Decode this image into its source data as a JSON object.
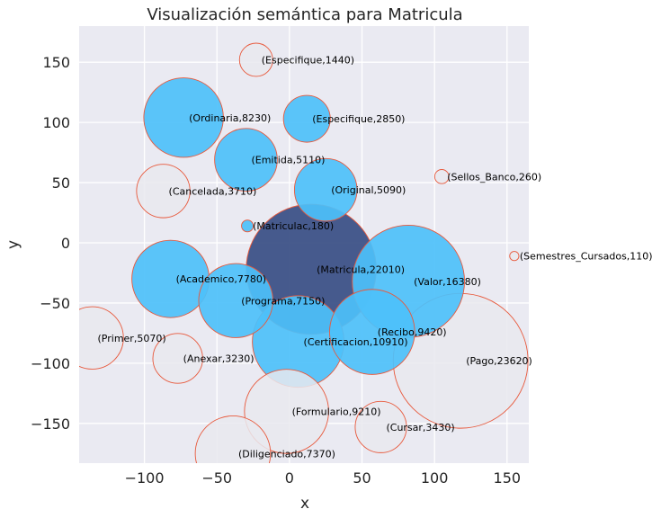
{
  "chart_data": {
    "type": "scatter",
    "title": "Visualización semántica para Matricula",
    "xlabel": "x",
    "ylabel": "y",
    "xlim": [
      -145,
      165
    ],
    "ylim": [
      -183,
      180
    ],
    "xticks": [
      -100,
      -50,
      0,
      50,
      100,
      150
    ],
    "yticks": [
      -150,
      -100,
      -50,
      0,
      50,
      100,
      150
    ],
    "xtick_labels": [
      "−100",
      "−50",
      "0",
      "50",
      "100",
      "150"
    ],
    "ytick_labels": [
      "−150",
      "−100",
      "−50",
      "0",
      "50",
      "100",
      "150"
    ],
    "grid": true,
    "colors": {
      "background": "#eaeaf2",
      "grid": "#ffffff",
      "bubble_blue": "#4dc0fa",
      "bubble_gray": "#e9e9ee",
      "bubble_center": "#3d5287",
      "edge": "#e8593c"
    },
    "points": [
      {
        "x": 15,
        "y": -22,
        "value": 22010,
        "label": "(Matricula,22010)",
        "style": "center"
      },
      {
        "x": 118,
        "y": -98,
        "value": 23620,
        "label": "(Pago,23620)",
        "style": "gray"
      },
      {
        "x": 82,
        "y": -32,
        "value": 16380,
        "label": "(Valor,16380)",
        "style": "blue"
      },
      {
        "x": 6,
        "y": -82,
        "value": 10910,
        "label": "(Certificacion,10910)",
        "style": "blue"
      },
      {
        "x": 57,
        "y": -74,
        "value": 9420,
        "label": "(Recibo,9420)",
        "style": "blue"
      },
      {
        "x": -2,
        "y": -140,
        "value": 9210,
        "label": "(Formulario,9210)",
        "style": "gray"
      },
      {
        "x": -73,
        "y": 104,
        "value": 8230,
        "label": "(Ordinaria,8230)",
        "style": "blue"
      },
      {
        "x": -82,
        "y": -30,
        "value": 7780,
        "label": "(Academico,7780)",
        "style": "blue"
      },
      {
        "x": -39,
        "y": -175,
        "value": 7370,
        "label": "(Diligenciado,7370)",
        "style": "gray"
      },
      {
        "x": -37,
        "y": -48,
        "value": 7150,
        "label": "(Programa,7150)",
        "style": "blue"
      },
      {
        "x": -30,
        "y": 69,
        "value": 5110,
        "label": "(Emitida,5110)",
        "style": "blue"
      },
      {
        "x": 25,
        "y": 44,
        "value": 5090,
        "label": "(Original,5090)",
        "style": "blue"
      },
      {
        "x": -136,
        "y": -79,
        "value": 5070,
        "label": "(Primer,5070)",
        "style": "gray"
      },
      {
        "x": -87,
        "y": 43,
        "value": 3710,
        "label": "(Cancelada,3710)",
        "style": "gray"
      },
      {
        "x": 63,
        "y": -153,
        "value": 3430,
        "label": "(Cursar,3430)",
        "style": "gray"
      },
      {
        "x": -77,
        "y": -96,
        "value": 3230,
        "label": "(Anexar,3230)",
        "style": "gray"
      },
      {
        "x": 12,
        "y": 103,
        "value": 2850,
        "label": "(Especifique,2850)",
        "style": "blue"
      },
      {
        "x": -23,
        "y": 152,
        "value": 1440,
        "label": "(Especifique,1440)",
        "style": "gray"
      },
      {
        "x": 105,
        "y": 55,
        "value": 260,
        "label": "(Sellos_Banco,260)",
        "style": "gray"
      },
      {
        "x": -29,
        "y": 14,
        "value": 180,
        "label": "(Matriculac,180)",
        "style": "blue"
      },
      {
        "x": 155,
        "y": -11,
        "value": 110,
        "label": "(Semestres_Cursados,110)",
        "style": "gray"
      }
    ]
  }
}
